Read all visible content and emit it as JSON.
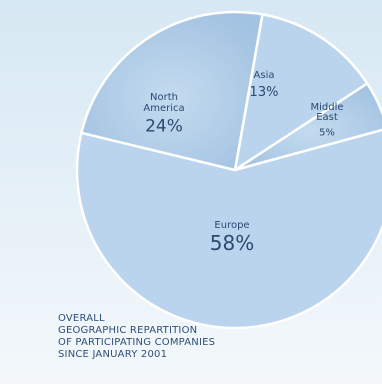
{
  "colors": {
    "background_top": "#d6e8f4",
    "background_bottom": "#f4f8fb",
    "slice_fill": "#a9c8e6",
    "slice_fill_alt": "#b9d4ec",
    "text": "#2a4a72",
    "separator": "#ffffff"
  },
  "chart_data": {
    "type": "pie",
    "categories": [
      "Europe",
      "North America",
      "Asia",
      "Middle East"
    ],
    "values": [
      58,
      24,
      13,
      5
    ],
    "labels": [
      {
        "name_lines": [
          "Europe"
        ],
        "percent": "58%"
      },
      {
        "name_lines": [
          "North",
          "America"
        ],
        "percent": "24%"
      },
      {
        "name_lines": [
          "Asia"
        ],
        "percent": "13%"
      },
      {
        "name_lines": [
          "Middle",
          "East"
        ],
        "percent": "5%"
      }
    ],
    "title_lines": [
      "OVERALL",
      "GEOGRAPHIC REPARTITION",
      "OF PARTICIPATING COMPANIES",
      "SINCE JANUARY 2001"
    ]
  }
}
